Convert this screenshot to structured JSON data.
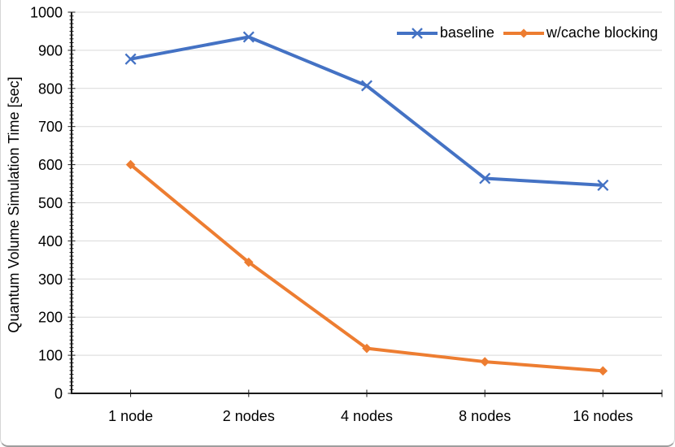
{
  "window": {
    "background": "#ffffff",
    "border_color": "#d6d6d6"
  },
  "chart_data": {
    "type": "line",
    "title": "",
    "xlabel": "",
    "ylabel": "Quantum Volume Simulation Time [sec]",
    "categories": [
      "1 node",
      "2 nodes",
      "4 nodes",
      "8 nodes",
      "16 nodes"
    ],
    "series": [
      {
        "name": "baseline",
        "color": "#4472C4",
        "marker": "x",
        "values": [
          877,
          935,
          807,
          564,
          546
        ]
      },
      {
        "name": "w/cache blocking",
        "color": "#ED7D31",
        "marker": "diamond",
        "values": [
          600,
          344,
          118,
          83,
          59
        ]
      }
    ],
    "ylim": [
      0,
      1000
    ],
    "ytick_step": 100,
    "yminor_step": 10,
    "ytick_labels": [
      "0",
      "100",
      "200",
      "300",
      "400",
      "500",
      "600",
      "700",
      "800",
      "900",
      "1000"
    ],
    "grid": true,
    "gridline_color": "#d9d9d9",
    "axis_color": "#1a1a1a",
    "text_color": "#000000",
    "line_width": 4,
    "legend_position": "top-right"
  }
}
